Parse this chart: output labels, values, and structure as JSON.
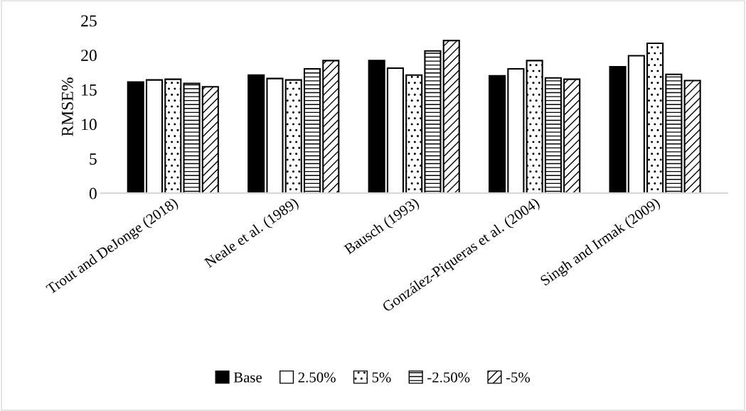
{
  "chart_data": {
    "type": "bar",
    "ylabel": "RMSE%",
    "categories": [
      "Trout and DeJonge (2018)",
      "Neale et al. (1989)",
      "Bausch (1993)",
      "González-Piqueras et al. (2004)",
      "Singh and Irmak (2009)"
    ],
    "series": [
      {
        "name": "Base",
        "color": "#000000",
        "values": [
          16.1,
          17.1,
          19.2,
          17.0,
          18.3
        ]
      },
      {
        "name": "2.50%",
        "color": "#ffffff",
        "values": [
          16.4,
          16.6,
          18.1,
          18.0,
          19.9
        ]
      },
      {
        "name": "5%",
        "color": "#000000",
        "values": [
          16.5,
          16.4,
          17.1,
          19.2,
          21.7
        ]
      },
      {
        "name": "-2.50%",
        "color": "#000000",
        "values": [
          15.9,
          18.0,
          20.6,
          16.7,
          17.2
        ]
      },
      {
        "name": "-5%",
        "color": "#000000",
        "values": [
          15.4,
          19.2,
          22.1,
          16.5,
          16.3
        ]
      }
    ],
    "ylim": [
      0,
      25
    ],
    "yticks": [
      0,
      5,
      10,
      15,
      20,
      25
    ],
    "grid": false,
    "legend": "bottom"
  }
}
